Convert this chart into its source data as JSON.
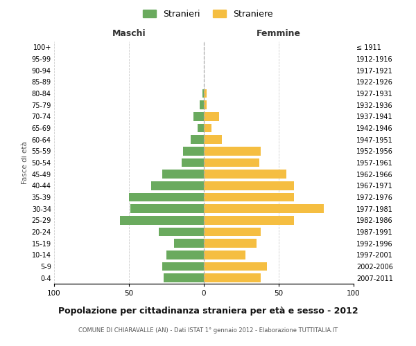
{
  "age_groups": [
    "0-4",
    "5-9",
    "10-14",
    "15-19",
    "20-24",
    "25-29",
    "30-34",
    "35-39",
    "40-44",
    "45-49",
    "50-54",
    "55-59",
    "60-64",
    "65-69",
    "70-74",
    "75-79",
    "80-84",
    "85-89",
    "90-94",
    "95-99",
    "100+"
  ],
  "birth_years": [
    "2007-2011",
    "2002-2006",
    "1997-2001",
    "1992-1996",
    "1987-1991",
    "1982-1986",
    "1977-1981",
    "1972-1976",
    "1967-1971",
    "1962-1966",
    "1957-1961",
    "1952-1956",
    "1947-1951",
    "1942-1946",
    "1937-1941",
    "1932-1936",
    "1927-1931",
    "1922-1926",
    "1917-1921",
    "1912-1916",
    "≤ 1911"
  ],
  "maschi": [
    27,
    28,
    25,
    20,
    30,
    56,
    49,
    50,
    35,
    28,
    15,
    14,
    9,
    4,
    7,
    3,
    1,
    0,
    0,
    0,
    0
  ],
  "femmine": [
    38,
    42,
    28,
    35,
    38,
    60,
    80,
    60,
    60,
    55,
    37,
    38,
    12,
    5,
    10,
    2,
    2,
    0,
    0,
    0,
    0
  ],
  "maschi_color": "#6aaa5e",
  "femmine_color": "#f5be41",
  "background_color": "#ffffff",
  "grid_color": "#cccccc",
  "title": "Popolazione per cittadinanza straniera per età e sesso - 2012",
  "subtitle": "COMUNE DI CHIARAVALLE (AN) - Dati ISTAT 1° gennaio 2012 - Elaborazione TUTTITALIA.IT",
  "xlabel_left": "Maschi",
  "xlabel_right": "Femmine",
  "ylabel_left": "Fasce di età",
  "legend_maschi": "Stranieri",
  "legend_femmine": "Straniere",
  "xlim": 100
}
